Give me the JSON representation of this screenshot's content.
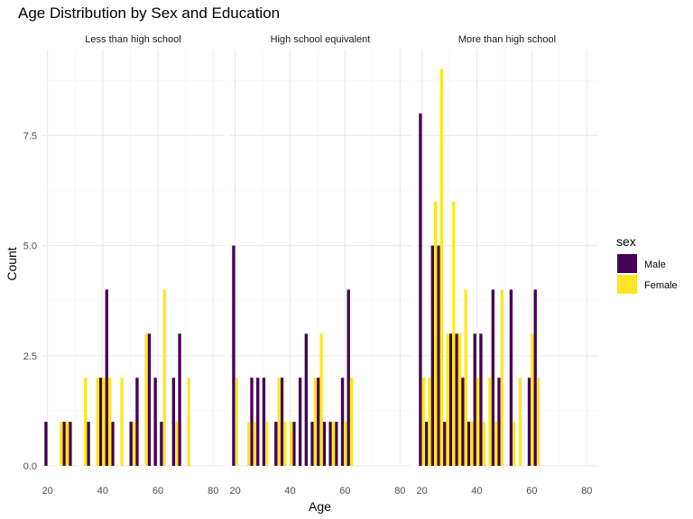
{
  "chart_data": {
    "type": "bar",
    "title": "Age Distribution by Sex and Education",
    "xlabel": "Age",
    "ylabel": "Count",
    "xlim": [
      18,
      84
    ],
    "ylim": [
      0,
      9.45
    ],
    "x_ticks": [
      20,
      40,
      60,
      80
    ],
    "y_ticks": [
      0,
      2.5,
      5,
      7.5
    ],
    "y_tick_labels": [
      "0.0",
      "2.5",
      "5.0",
      "7.5"
    ],
    "grid": true,
    "legend": {
      "title": "sex",
      "position": "right",
      "entries": [
        {
          "label": "Male",
          "color": "#440154"
        },
        {
          "label": "Female",
          "color": "#FDE725"
        }
      ]
    },
    "bin_width": 2.2,
    "bin_centers": [
      20.0,
      22.2,
      24.4,
      26.6,
      28.8,
      31.0,
      33.2,
      35.4,
      37.6,
      39.8,
      42.0,
      44.2,
      46.4,
      48.6,
      50.8,
      53.0,
      55.2,
      57.4,
      59.6,
      61.8,
      64.0,
      66.2,
      68.4,
      70.6,
      72.8,
      75.0,
      77.2,
      79.4,
      81.6
    ],
    "facets": [
      {
        "label": "Less than high school",
        "series": [
          {
            "name": "Male",
            "values": [
              1,
              0,
              0,
              1,
              1,
              0,
              0,
              1,
              0,
              2,
              4,
              1,
              0,
              0,
              1,
              2,
              0,
              3,
              2,
              1,
              0,
              2,
              3,
              0,
              0,
              0,
              0,
              0,
              0
            ]
          },
          {
            "name": "Female",
            "values": [
              0,
              0,
              1,
              1,
              0,
              0,
              2,
              0,
              2,
              2,
              2,
              0,
              2,
              0,
              1,
              0,
              3,
              0,
              0,
              4,
              0,
              1,
              0,
              2,
              0,
              0,
              0,
              0,
              0
            ]
          }
        ]
      },
      {
        "label": "High school equivalent",
        "series": [
          {
            "name": "Male",
            "values": [
              5,
              0,
              0,
              2,
              2,
              2,
              0,
              1,
              2,
              0,
              1,
              2,
              3,
              1,
              2,
              1,
              1,
              1,
              2,
              4,
              0,
              0,
              0,
              0,
              0,
              0,
              0,
              0,
              0
            ]
          },
          {
            "name": "Female",
            "values": [
              2,
              0,
              1,
              1,
              0,
              1,
              0,
              2,
              1,
              1,
              0,
              0,
              0,
              2,
              3,
              0,
              1,
              0,
              1,
              2,
              0,
              0,
              0,
              0,
              0,
              0,
              0,
              0,
              0
            ]
          }
        ]
      },
      {
        "label": "More than high school",
        "series": [
          {
            "name": "Male",
            "values": [
              8,
              1,
              5,
              5,
              1,
              3,
              3,
              2,
              1,
              3,
              3,
              0,
              4,
              2,
              0,
              4,
              0,
              0,
              2,
              4,
              0,
              0,
              0,
              0,
              0,
              0,
              0,
              0,
              0
            ]
          },
          {
            "name": "Female",
            "values": [
              2,
              2,
              6,
              9,
              3,
              6,
              3,
              4,
              1,
              2,
              1,
              2,
              1,
              4,
              0,
              1,
              2,
              0,
              3,
              2,
              0,
              0,
              0,
              0,
              0,
              0,
              0,
              0,
              0
            ]
          }
        ]
      }
    ]
  }
}
